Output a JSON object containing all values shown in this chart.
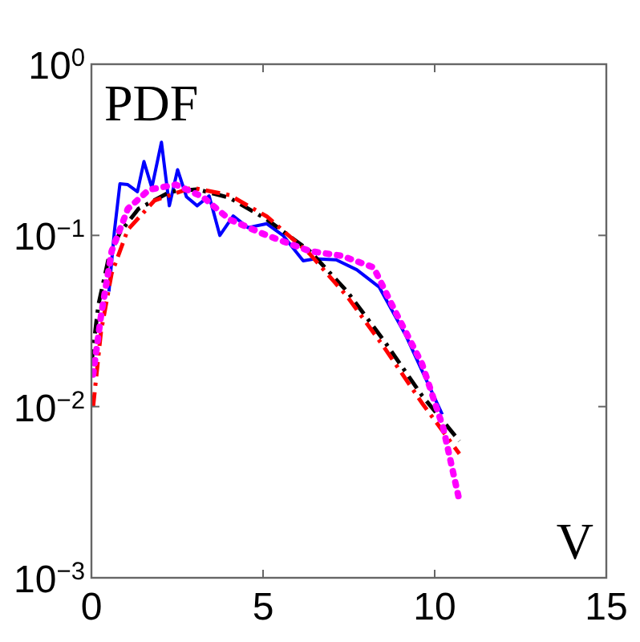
{
  "chart_data": {
    "type": "line",
    "annotations": [
      "PDF",
      "V"
    ],
    "log": "y",
    "grid": false,
    "xlim": [
      0,
      15
    ],
    "xticks": [
      0,
      5,
      10,
      15
    ],
    "ylim": [
      0.001,
      1
    ],
    "yticks": [
      {
        "value": 0.001,
        "label": "10$^{−3}$"
      },
      {
        "value": 0.01,
        "label": "10$^{−2}$"
      },
      {
        "value": 0.1,
        "label": "10$^{−1}$"
      },
      {
        "value": 1,
        "label": "10$^{0}$"
      }
    ],
    "series": [
      {
        "color": "#0000ff",
        "line_style": "solid",
        "x": [
          0.51,
          0.67,
          0.83,
          1.06,
          1.34,
          1.53,
          1.76,
          2.04,
          2.27,
          2.51,
          2.77,
          3.08,
          3.43,
          3.74,
          4.13,
          4.56,
          5.11,
          5.58,
          6.17,
          6.51,
          7.13,
          7.73,
          8.38,
          9.16,
          10.22
        ],
        "values": [
          0.047,
          0.106,
          0.2,
          0.198,
          0.18,
          0.27,
          0.19,
          0.35,
          0.149,
          0.242,
          0.168,
          0.149,
          0.17,
          0.1,
          0.13,
          0.111,
          0.117,
          0.1,
          0.071,
          0.073,
          0.072,
          0.063,
          0.05,
          0.026,
          0.009
        ]
      },
      {
        "color": "#000000",
        "line_style": "dashed",
        "x": [
          0,
          0.2,
          0.51,
          0.83,
          1.37,
          2.3,
          3.08,
          4.02,
          5.11,
          6.36,
          7.45,
          8.54,
          9.63,
          10.72
        ],
        "values": [
          0.0178,
          0.039,
          0.075,
          0.104,
          0.143,
          0.18,
          0.186,
          0.166,
          0.124,
          0.081,
          0.047,
          0.024,
          0.0116,
          0.0063
        ]
      },
      {
        "color": "#ff0000",
        "line_style": "dashed",
        "x": [
          0.05,
          0.28,
          0.59,
          1.06,
          1.84,
          2.93,
          4.02,
          5.11,
          6.36,
          7.45,
          8.54,
          9.63,
          10.72
        ],
        "values": [
          0.01,
          0.0275,
          0.06,
          0.108,
          0.16,
          0.19,
          0.172,
          0.129,
          0.078,
          0.044,
          0.022,
          0.0105,
          0.0053
        ]
      },
      {
        "color": "#ff00ff",
        "line_style": "dotted",
        "x": [
          0.05,
          0.28,
          0.59,
          1.06,
          1.68,
          2.46,
          3.24,
          4.02,
          5.11,
          6.36,
          7.29,
          8.22,
          8.85,
          9.63,
          10.25,
          10.69
        ],
        "values": [
          0.0154,
          0.034,
          0.081,
          0.143,
          0.185,
          0.198,
          0.168,
          0.124,
          0.1,
          0.081,
          0.076,
          0.065,
          0.036,
          0.0178,
          0.0075,
          0.003
        ]
      }
    ]
  }
}
